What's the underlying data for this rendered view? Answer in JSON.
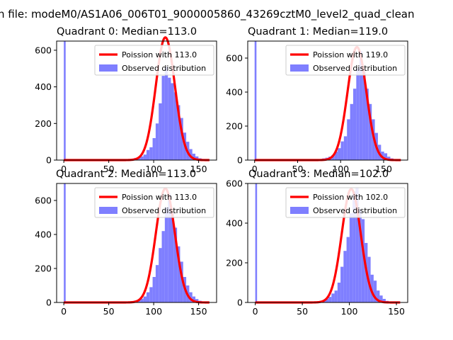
{
  "figure": {
    "suptitle": "n file: modeM0/AS1A06_006T01_9000005860_43269cztM0_level2_quad_clean"
  },
  "colors": {
    "histogram": "#7f7fff",
    "poisson": "#ff0000",
    "axis": "#000000"
  },
  "chart_data": [
    {
      "type": "bar",
      "title": "Quadrant 0: Median=113.0",
      "xlim": [
        -8,
        170
      ],
      "ylim": [
        0,
        650
      ],
      "xticks": [
        "0",
        "50",
        "100",
        "150"
      ],
      "xtick_values": [
        0,
        50,
        100,
        150
      ],
      "yticks": [
        "0",
        "200",
        "400",
        "600"
      ],
      "ytick_values": [
        0,
        200,
        400,
        600
      ],
      "median": 113.0,
      "legend": {
        "placement": "top-right",
        "poisson_label": "Poission with 113.0",
        "hist_label": "Observed distribution"
      },
      "bin_width": 3.4,
      "hist_x": [
        0,
        75,
        78.4,
        81.8,
        85.2,
        88.6,
        92,
        95.4,
        98.8,
        102.2,
        105.6,
        109,
        112.4,
        115.8,
        119.2,
        122.6,
        126,
        129.4,
        132.8,
        136.2,
        139.6,
        143,
        146.4,
        149.8,
        153.2,
        156.6,
        160
      ],
      "hist_y": [
        650,
        8,
        12,
        15,
        20,
        30,
        55,
        70,
        120,
        200,
        310,
        460,
        510,
        450,
        420,
        370,
        300,
        230,
        150,
        100,
        60,
        35,
        20,
        10,
        6,
        4,
        2
      ],
      "poisson_peak": 670
    },
    {
      "type": "bar",
      "title": "Quadrant 1: Median=119.0",
      "xlim": [
        -8,
        178
      ],
      "ylim": [
        0,
        700
      ],
      "xticks": [
        "0",
        "50",
        "100",
        "150"
      ],
      "xtick_values": [
        0,
        50,
        100,
        150
      ],
      "yticks": [
        "0",
        "200",
        "400",
        "600"
      ],
      "ytick_values": [
        0,
        200,
        400,
        600
      ],
      "median": 119.0,
      "legend": {
        "placement": "top-right",
        "poisson_label": "Poission with 119.0",
        "hist_label": "Observed distribution"
      },
      "bin_width": 3.6,
      "hist_x": [
        0,
        75,
        78.6,
        82.2,
        85.8,
        89.4,
        93,
        96.6,
        100.2,
        103.8,
        107.4,
        111,
        114.6,
        118.2,
        121.8,
        125.4,
        129,
        132.6,
        136.2,
        139.8,
        143.4,
        147,
        150.6,
        154.2,
        157.8,
        161.4
      ],
      "hist_y": [
        700,
        6,
        10,
        14,
        20,
        30,
        50,
        70,
        110,
        140,
        240,
        330,
        420,
        540,
        640,
        520,
        420,
        330,
        240,
        160,
        90,
        50,
        40,
        20,
        10,
        5
      ],
      "poisson_peak": 665
    },
    {
      "type": "bar",
      "title": "Quadrant 2: Median=113.0",
      "xlim": [
        -8,
        170
      ],
      "ylim": [
        0,
        700
      ],
      "xticks": [
        "0",
        "50",
        "100",
        "150"
      ],
      "xtick_values": [
        0,
        50,
        100,
        150
      ],
      "yticks": [
        "0",
        "200",
        "400",
        "600"
      ],
      "ytick_values": [
        0,
        200,
        400,
        600
      ],
      "median": 113.0,
      "legend": {
        "placement": "top-right",
        "poisson_label": "Poission with 113.0",
        "hist_label": "Observed distribution"
      },
      "bin_width": 3.4,
      "hist_x": [
        0,
        75,
        78.4,
        81.8,
        85.2,
        88.6,
        92,
        95.4,
        98.8,
        102.2,
        105.6,
        109,
        112.4,
        115.8,
        119.2,
        122.6,
        126,
        129.4,
        132.8,
        136.2,
        139.6,
        143,
        146.4,
        149.8,
        153.2,
        156.6,
        160
      ],
      "hist_y": [
        700,
        8,
        12,
        15,
        22,
        35,
        60,
        90,
        150,
        220,
        320,
        420,
        560,
        640,
        530,
        440,
        330,
        240,
        150,
        100,
        60,
        35,
        20,
        10,
        6,
        4,
        2
      ],
      "poisson_peak": 670
    },
    {
      "type": "bar",
      "title": "Quadrant 3: Median=102.0",
      "xlim": [
        -8,
        162
      ],
      "ylim": [
        0,
        600
      ],
      "xticks": [
        "0",
        "50",
        "100",
        "150"
      ],
      "xtick_values": [
        0,
        50,
        100,
        150
      ],
      "yticks": [
        "0",
        "200",
        "400",
        "600"
      ],
      "ytick_values": [
        0,
        200,
        400,
        600
      ],
      "median": 102.0,
      "legend": {
        "placement": "top-right",
        "poisson_label": "Poission with 102.0",
        "hist_label": "Observed distribution"
      },
      "bin_width": 3.2,
      "hist_x": [
        0,
        65,
        68.2,
        71.4,
        74.6,
        77.8,
        81,
        84.2,
        87.4,
        90.6,
        93.8,
        97,
        100.2,
        103.4,
        106.6,
        109.8,
        113,
        116.2,
        119.4,
        122.6,
        125.8,
        129,
        132.2,
        135.4,
        138.6,
        141.8
      ],
      "hist_y": [
        600,
        5,
        8,
        12,
        18,
        28,
        45,
        60,
        100,
        180,
        260,
        330,
        450,
        560,
        580,
        470,
        420,
        300,
        230,
        140,
        110,
        60,
        35,
        18,
        8,
        4
      ],
      "poisson_peak": 572
    }
  ]
}
